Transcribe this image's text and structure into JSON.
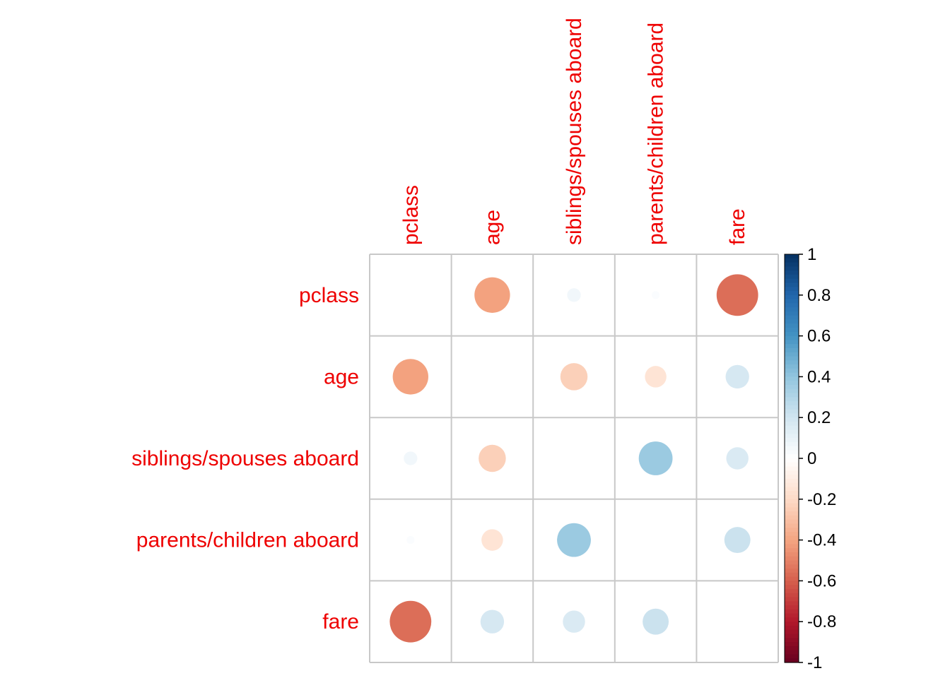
{
  "chart_data": {
    "type": "heatmap",
    "variables": [
      "pclass",
      "age",
      "siblings/spouses aboard",
      "parents/children aboard",
      "fare"
    ],
    "matrix": [
      [
        null,
        -0.41,
        0.06,
        0.02,
        -0.56
      ],
      [
        -0.41,
        null,
        -0.24,
        -0.15,
        0.18
      ],
      [
        0.06,
        -0.24,
        null,
        0.37,
        0.16
      ],
      [
        0.02,
        -0.15,
        0.37,
        null,
        0.22
      ],
      [
        -0.56,
        0.18,
        0.16,
        0.22,
        null
      ]
    ],
    "diagonal_shown": false,
    "label_color": "#ee0000",
    "colorbar": {
      "ticks": [
        "1",
        "0.8",
        "0.6",
        "0.4",
        "0.2",
        "0",
        "-0.2",
        "-0.4",
        "-0.6",
        "-0.8",
        "-1"
      ],
      "range": [
        -1,
        1
      ],
      "colors": [
        "#67001F",
        "#B2182B",
        "#D6604D",
        "#F4A582",
        "#FDDBC7",
        "#FFFFFF",
        "#D1E5F0",
        "#92C5DE",
        "#4393C3",
        "#2166AC",
        "#053061"
      ]
    }
  }
}
